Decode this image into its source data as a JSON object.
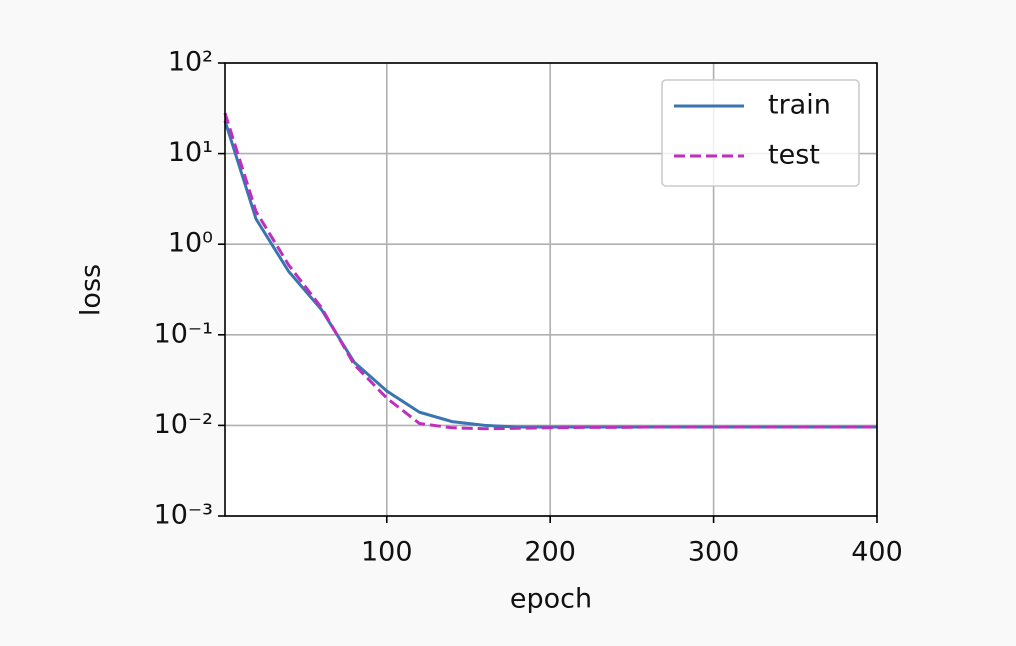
{
  "chart_data": {
    "type": "line",
    "xlabel": "epoch",
    "ylabel": "loss",
    "x": [
      1,
      20,
      40,
      60,
      80,
      100,
      120,
      140,
      160,
      180,
      200,
      220,
      240,
      260,
      280,
      300,
      320,
      340,
      360,
      380,
      400
    ],
    "series": [
      {
        "name": "train",
        "color": "#3a75b0",
        "dash": false,
        "values": [
          23,
          1.9,
          0.5,
          0.19,
          0.05,
          0.024,
          0.014,
          0.011,
          0.01,
          0.0096,
          0.0096,
          0.0096,
          0.0096,
          0.0096,
          0.0096,
          0.0096,
          0.0096,
          0.0096,
          0.0096,
          0.0096,
          0.0096
        ]
      },
      {
        "name": "test",
        "color": "#bf2fbf",
        "dash": true,
        "values": [
          28,
          2.3,
          0.59,
          0.2,
          0.047,
          0.02,
          0.0105,
          0.0094,
          0.0092,
          0.0093,
          0.0094,
          0.0095,
          0.0095,
          0.0096,
          0.0096,
          0.0096,
          0.0096,
          0.0096,
          0.0096,
          0.0096,
          0.0096
        ]
      }
    ],
    "xlim": [
      1,
      400
    ],
    "xticks": [
      100,
      200,
      300,
      400
    ],
    "ylim": [
      0.001,
      100
    ],
    "log_y": true,
    "yticks": [
      {
        "value": 0.001,
        "label": "10⁻³"
      },
      {
        "value": 0.01,
        "label": "10⁻²"
      },
      {
        "value": 0.1,
        "label": "10⁻¹"
      },
      {
        "value": 1,
        "label": "10⁰"
      },
      {
        "value": 10,
        "label": "10¹"
      },
      {
        "value": 100,
        "label": "10²"
      }
    ],
    "grid": true,
    "legend": "upper right"
  }
}
